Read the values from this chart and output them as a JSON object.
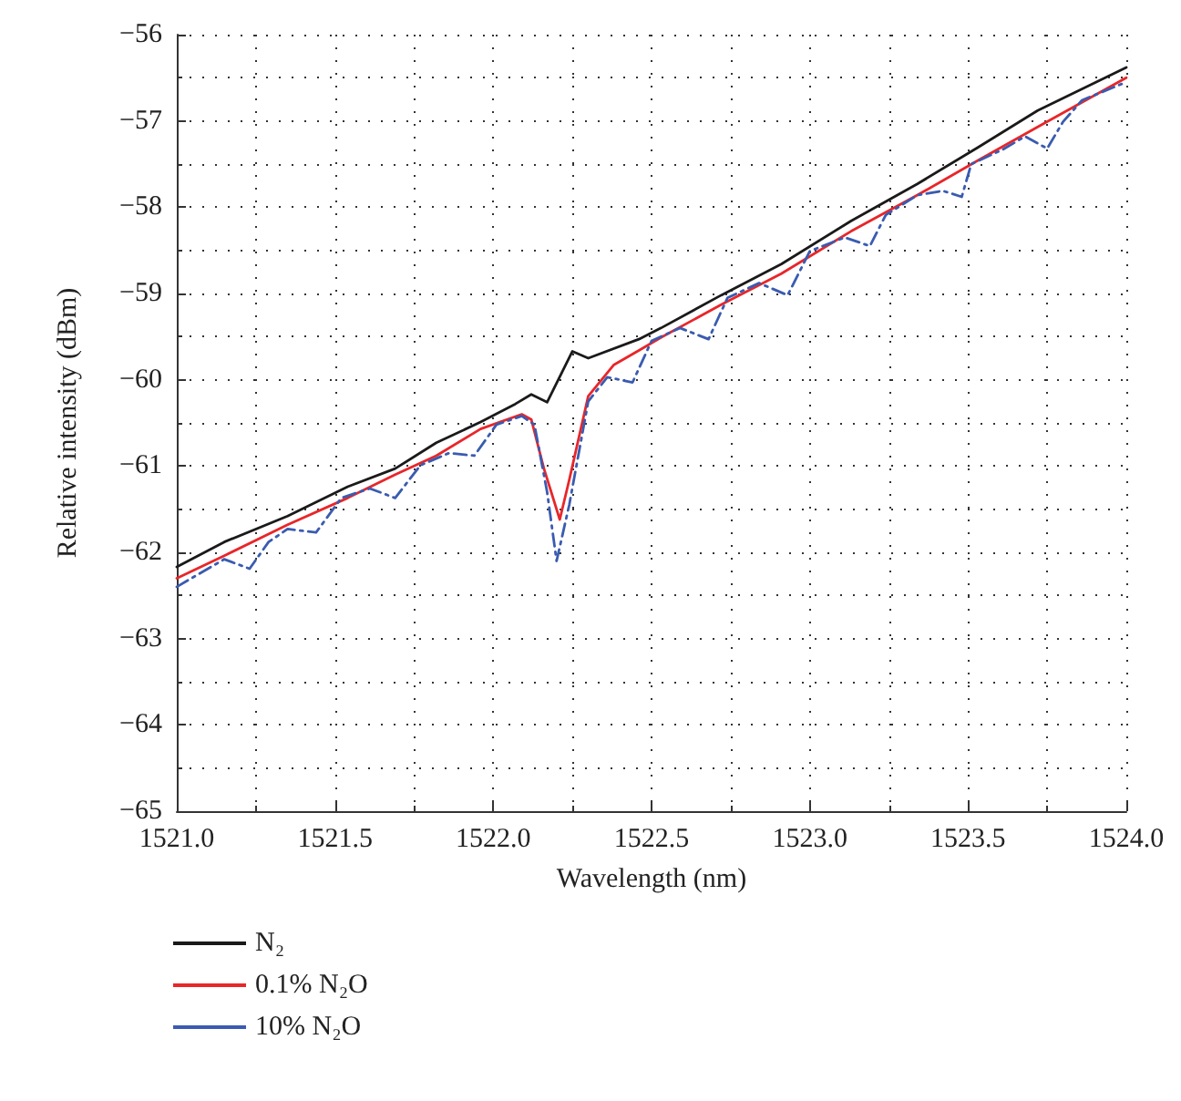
{
  "chart_data": {
    "type": "line",
    "xlabel": "Wavelength (nm)",
    "ylabel": "Relative intensity (dBm)",
    "xlim": [
      1521.0,
      1524.0
    ],
    "xticks": [
      {
        "value": 1521.0,
        "label": "1521.0"
      },
      {
        "value": 1521.5,
        "label": "1521.5"
      },
      {
        "value": 1522.0,
        "label": "1522.0"
      },
      {
        "value": 1522.5,
        "label": "1522.5"
      },
      {
        "value": 1523.0,
        "label": "1523.0"
      },
      {
        "value": 1523.5,
        "label": "1523.5"
      },
      {
        "value": 1524.0,
        "label": "1524.0"
      }
    ],
    "ylim": [
      -65,
      -56
    ],
    "yticks": [
      {
        "value": -65,
        "label": "−65"
      },
      {
        "value": -64,
        "label": "−64"
      },
      {
        "value": -63,
        "label": "−63"
      },
      {
        "value": -62,
        "label": "−62"
      },
      {
        "value": -61,
        "label": "−61"
      },
      {
        "value": -60,
        "label": "−60"
      },
      {
        "value": -59,
        "label": "−59"
      },
      {
        "value": -58,
        "label": "−58"
      },
      {
        "value": -57,
        "label": "−57"
      },
      {
        "value": -56,
        "label": "−56"
      }
    ],
    "grid": true,
    "legend": "bottom left",
    "marker": "none",
    "series": [
      {
        "name": "N₂",
        "color": "#1a1a1a",
        "line_style": "solid",
        "x": [
          1521.0,
          1521.15,
          1521.35,
          1521.54,
          1521.69,
          1521.82,
          1521.96,
          1522.07,
          1522.12,
          1522.17,
          1522.25,
          1522.3,
          1522.46,
          1522.53,
          1522.72,
          1522.91,
          1523.13,
          1523.34,
          1523.53,
          1523.72,
          1524.0
        ],
        "values": [
          -62.17,
          -61.88,
          -61.58,
          -61.24,
          -61.03,
          -60.73,
          -60.49,
          -60.28,
          -60.17,
          -60.26,
          -59.67,
          -59.75,
          -59.53,
          -59.4,
          -59.02,
          -58.66,
          -58.16,
          -57.73,
          -57.31,
          -56.88,
          -56.38
        ]
      },
      {
        "name": "0.1% N₂O",
        "color": "#e8262a",
        "line_style": "solid",
        "x": [
          1521.0,
          1521.15,
          1521.35,
          1521.54,
          1521.69,
          1521.82,
          1521.96,
          1522.09,
          1522.12,
          1522.16,
          1522.21,
          1522.24,
          1522.3,
          1522.38,
          1522.46,
          1522.53,
          1522.72,
          1522.91,
          1523.13,
          1523.34,
          1523.53,
          1523.72,
          1524.0
        ],
        "values": [
          -62.3,
          -62.04,
          -61.68,
          -61.37,
          -61.1,
          -60.88,
          -60.57,
          -60.4,
          -60.46,
          -61.03,
          -61.62,
          -61.16,
          -60.19,
          -59.83,
          -59.66,
          -59.51,
          -59.13,
          -58.77,
          -58.28,
          -57.86,
          -57.46,
          -57.07,
          -56.5
        ]
      },
      {
        "name": "10% N₂O",
        "color": "#3a5bb0",
        "line_style": "dashed",
        "x": [
          1521.0,
          1521.15,
          1521.23,
          1521.29,
          1521.35,
          1521.44,
          1521.52,
          1521.61,
          1521.69,
          1521.77,
          1521.86,
          1521.94,
          1522.01,
          1522.09,
          1522.13,
          1522.17,
          1522.2,
          1522.24,
          1522.3,
          1522.36,
          1522.44,
          1522.5,
          1522.59,
          1522.68,
          1522.74,
          1522.84,
          1522.93,
          1523.0,
          1523.11,
          1523.19,
          1523.24,
          1523.34,
          1523.42,
          1523.48,
          1523.51,
          1523.61,
          1523.68,
          1523.75,
          1523.8,
          1523.86,
          1524.0
        ],
        "values": [
          -62.4,
          -62.08,
          -62.19,
          -61.88,
          -61.73,
          -61.77,
          -61.37,
          -61.26,
          -61.37,
          -60.99,
          -60.85,
          -60.88,
          -60.52,
          -60.42,
          -60.52,
          -61.3,
          -62.1,
          -61.45,
          -60.25,
          -59.97,
          -60.03,
          -59.55,
          -59.4,
          -59.53,
          -59.05,
          -58.88,
          -59.02,
          -58.51,
          -58.35,
          -58.45,
          -58.09,
          -57.86,
          -57.81,
          -57.88,
          -57.5,
          -57.33,
          -57.18,
          -57.32,
          -57.01,
          -56.76,
          -56.55
        ]
      }
    ]
  }
}
